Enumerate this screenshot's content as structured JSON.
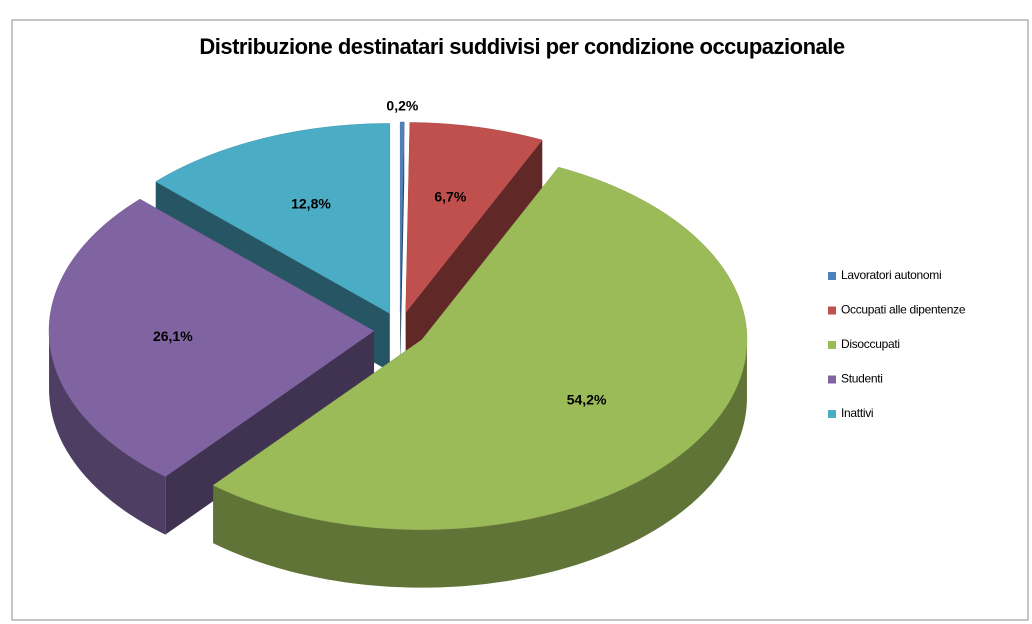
{
  "chart_data": {
    "type": "pie3d",
    "title": "Distribuzione destinatari suddivisi per condizione occupazionale",
    "categories": [
      "Lavoratori autonomi",
      "Occupati alle dipentenze",
      "Disoccupati",
      "Studenti",
      "Inattivi"
    ],
    "values": [
      0.2,
      6.7,
      54.2,
      26.1,
      12.8
    ],
    "value_labels": [
      "0,2%",
      "6,7%",
      "54,2%",
      "26,1%",
      "12,8%"
    ],
    "colors": [
      "#4f81bd",
      "#c0504d",
      "#9bbb59",
      "#8064a2",
      "#4bacc6"
    ],
    "legend": "right"
  }
}
